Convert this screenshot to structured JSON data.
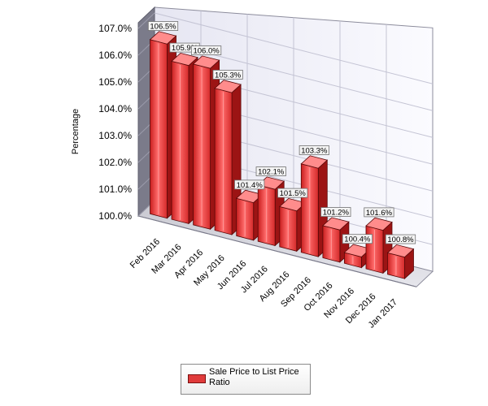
{
  "chart_data": {
    "type": "bar",
    "title": "",
    "xlabel": "",
    "ylabel": "Percentage",
    "ylim": [
      100.0,
      107.0
    ],
    "yticks": [
      "100.0%",
      "101.0%",
      "102.0%",
      "103.0%",
      "104.0%",
      "105.0%",
      "106.0%",
      "107.0%"
    ],
    "categories": [
      "Feb 2016",
      "Mar 2016",
      "Apr 2016",
      "May 2016",
      "Jun 2016",
      "Jul 2016",
      "Aug 2016",
      "Sep 2016",
      "Oct 2016",
      "Nov 2016",
      "Dec 2016",
      "Jan 2017"
    ],
    "series": [
      {
        "name": "Sale Price to List Price Ratio",
        "values": [
          106.5,
          105.9,
          106.0,
          105.3,
          101.4,
          102.1,
          101.5,
          103.3,
          101.2,
          100.4,
          101.6,
          100.8
        ],
        "labels": [
          "106.5%",
          "105.9%",
          "106.0%",
          "105.3%",
          "101.4%",
          "102.1%",
          "101.5%",
          "103.3%",
          "101.2%",
          "100.4%",
          "101.6%",
          "100.8%"
        ],
        "color": "#e03a3a"
      }
    ],
    "grid": true,
    "legend_position": "bottom",
    "style": "3d"
  }
}
